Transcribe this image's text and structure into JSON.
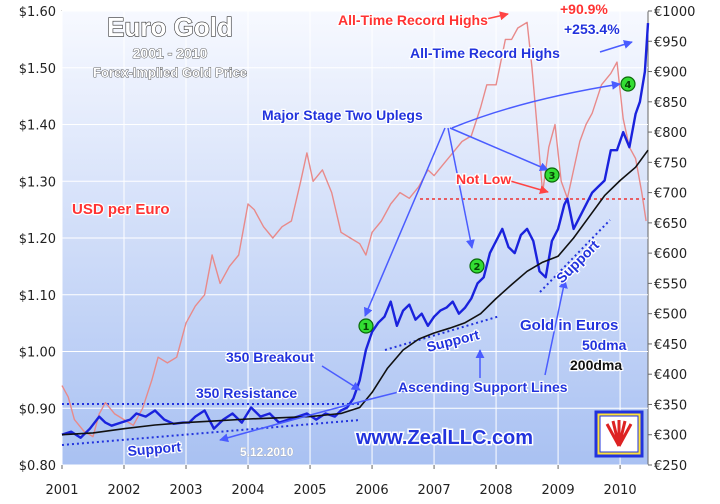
{
  "chart_data": {
    "type": "line",
    "title": "Euro Gold",
    "subtitle": "2001 - 2010",
    "subtitle2": "Forex-Implied Gold Price",
    "left_axis_label": "USD per Euro",
    "ylim_left": [
      0.8,
      1.6
    ],
    "ylim_right": [
      250,
      1000
    ],
    "x_range": [
      2001.0,
      2010.45
    ],
    "y_ticks_left": [
      "$0.80",
      "$0.90",
      "$1.00",
      "$1.10",
      "$1.20",
      "$1.30",
      "$1.40",
      "$1.50",
      "$1.60"
    ],
    "y_ticks_right": [
      "€250",
      "€300",
      "€350",
      "€400",
      "€450",
      "€500",
      "€550",
      "€600",
      "€650",
      "€700",
      "€750",
      "€800",
      "€850",
      "€900",
      "€950",
      "€1000"
    ],
    "x_ticks": [
      "2001",
      "2002",
      "2003",
      "2004",
      "2005",
      "2006",
      "2007",
      "2008",
      "2009",
      "2010"
    ],
    "grid": true,
    "series": [
      {
        "name": "USD per Euro",
        "axis": "left",
        "color": "#e88a8a",
        "x": [
          2001.0,
          2001.1,
          2001.2,
          2001.35,
          2001.5,
          2001.6,
          2001.7,
          2001.85,
          2002.0,
          2002.15,
          2002.3,
          2002.45,
          2002.55,
          2002.7,
          2002.85,
          2003.0,
          2003.15,
          2003.3,
          2003.42,
          2003.55,
          2003.7,
          2003.85,
          2004.0,
          2004.1,
          2004.25,
          2004.4,
          2004.55,
          2004.7,
          2004.85,
          2004.95,
          2005.05,
          2005.2,
          2005.35,
          2005.5,
          2005.65,
          2005.8,
          2005.9,
          2006.0,
          2006.15,
          2006.3,
          2006.45,
          2006.6,
          2006.75,
          2006.9,
          2007.0,
          2007.15,
          2007.3,
          2007.45,
          2007.6,
          2007.75,
          2007.85,
          2008.0,
          2008.15,
          2008.25,
          2008.35,
          2008.5,
          2008.58,
          2008.65,
          2008.75,
          2008.85,
          2008.95,
          2009.05,
          2009.15,
          2009.25,
          2009.35,
          2009.45,
          2009.55,
          2009.7,
          2009.85,
          2009.95,
          2010.05,
          2010.15,
          2010.25,
          2010.35,
          2010.42
        ],
        "y": [
          0.94,
          0.92,
          0.88,
          0.86,
          0.85,
          0.89,
          0.91,
          0.89,
          0.88,
          0.87,
          0.9,
          0.95,
          0.99,
          0.98,
          0.99,
          1.05,
          1.08,
          1.1,
          1.17,
          1.12,
          1.15,
          1.17,
          1.26,
          1.25,
          1.22,
          1.2,
          1.22,
          1.23,
          1.3,
          1.35,
          1.3,
          1.32,
          1.28,
          1.21,
          1.2,
          1.19,
          1.17,
          1.21,
          1.23,
          1.26,
          1.28,
          1.27,
          1.29,
          1.32,
          1.31,
          1.33,
          1.35,
          1.37,
          1.38,
          1.43,
          1.47,
          1.47,
          1.55,
          1.55,
          1.57,
          1.58,
          1.5,
          1.41,
          1.28,
          1.36,
          1.4,
          1.3,
          1.27,
          1.32,
          1.37,
          1.4,
          1.42,
          1.47,
          1.49,
          1.51,
          1.41,
          1.36,
          1.34,
          1.28,
          1.23
        ]
      },
      {
        "name": "Gold in Euros",
        "axis": "right",
        "color": "#1a22dd",
        "x": [
          2001.0,
          2001.15,
          2001.3,
          2001.45,
          2001.6,
          2001.7,
          2001.8,
          2001.95,
          2002.1,
          2002.2,
          2002.35,
          2002.5,
          2002.65,
          2002.8,
          2002.95,
          2003.05,
          2003.15,
          2003.3,
          2003.45,
          2003.6,
          2003.75,
          2003.9,
          2004.05,
          2004.2,
          2004.35,
          2004.5,
          2004.65,
          2004.8,
          2004.95,
          2005.1,
          2005.25,
          2005.4,
          2005.5,
          2005.6,
          2005.7,
          2005.8,
          2005.9,
          2006.0,
          2006.1,
          2006.2,
          2006.3,
          2006.4,
          2006.5,
          2006.6,
          2006.7,
          2006.8,
          2006.9,
          2007.0,
          2007.1,
          2007.2,
          2007.3,
          2007.4,
          2007.5,
          2007.6,
          2007.7,
          2007.8,
          2007.9,
          2008.0,
          2008.1,
          2008.2,
          2008.3,
          2008.4,
          2008.5,
          2008.6,
          2008.7,
          2008.8,
          2008.9,
          2009.0,
          2009.1,
          2009.15,
          2009.25,
          2009.35,
          2009.45,
          2009.55,
          2009.65,
          2009.75,
          2009.85,
          2009.95,
          2010.05,
          2010.15,
          2010.25,
          2010.32,
          2010.4,
          2010.45
        ],
        "y": [
          300,
          305,
          295,
          310,
          330,
          320,
          315,
          320,
          325,
          335,
          330,
          340,
          325,
          318,
          320,
          320,
          330,
          340,
          310,
          325,
          335,
          320,
          345,
          330,
          335,
          320,
          325,
          330,
          335,
          325,
          335,
          330,
          340,
          345,
          360,
          390,
          440,
          470,
          485,
          495,
          520,
          480,
          505,
          515,
          490,
          500,
          480,
          495,
          505,
          510,
          520,
          500,
          510,
          525,
          550,
          560,
          600,
          620,
          640,
          610,
          600,
          630,
          640,
          620,
          570,
          560,
          620,
          640,
          680,
          690,
          640,
          660,
          680,
          700,
          710,
          720,
          770,
          770,
          800,
          775,
          830,
          850,
          900,
          980
        ]
      },
      {
        "name": "200dma",
        "axis": "right",
        "color": "#111111",
        "x": [
          2001.0,
          2001.5,
          2002.0,
          2002.5,
          2003.0,
          2003.5,
          2004.0,
          2004.5,
          2005.0,
          2005.5,
          2005.8,
          2006.0,
          2006.25,
          2006.5,
          2006.75,
          2007.0,
          2007.25,
          2007.5,
          2007.75,
          2008.0,
          2008.25,
          2008.5,
          2008.75,
          2009.0,
          2009.25,
          2009.5,
          2009.75,
          2010.0,
          2010.25,
          2010.45
        ],
        "y": [
          300,
          303,
          310,
          316,
          320,
          323,
          326,
          328,
          330,
          335,
          345,
          370,
          410,
          440,
          458,
          468,
          476,
          485,
          500,
          525,
          548,
          570,
          585,
          595,
          625,
          660,
          695,
          720,
          742,
          770
        ]
      }
    ],
    "annotations": {
      "record_highs_usd": "All-Time Record Highs",
      "pct_usd": "+90.9%",
      "pct_eur": "+253.4%",
      "record_highs_eur": "All-Time Record Highs",
      "uplegs": "Major Stage Two Uplegs",
      "not_low": "Not Low",
      "breakout": "350 Breakout",
      "resistance": "350 Resistance",
      "ascending": "Ascending Support Lines",
      "support1": "Support",
      "support2": "Support",
      "support3": "Support",
      "gold_in_euros": "Gold in Euros",
      "dma50": "50dma",
      "dma200": "200dma",
      "website": "www.ZealLLC.com",
      "date": "5.12.2010",
      "markers": [
        "1",
        "2",
        "3",
        "4"
      ]
    }
  }
}
